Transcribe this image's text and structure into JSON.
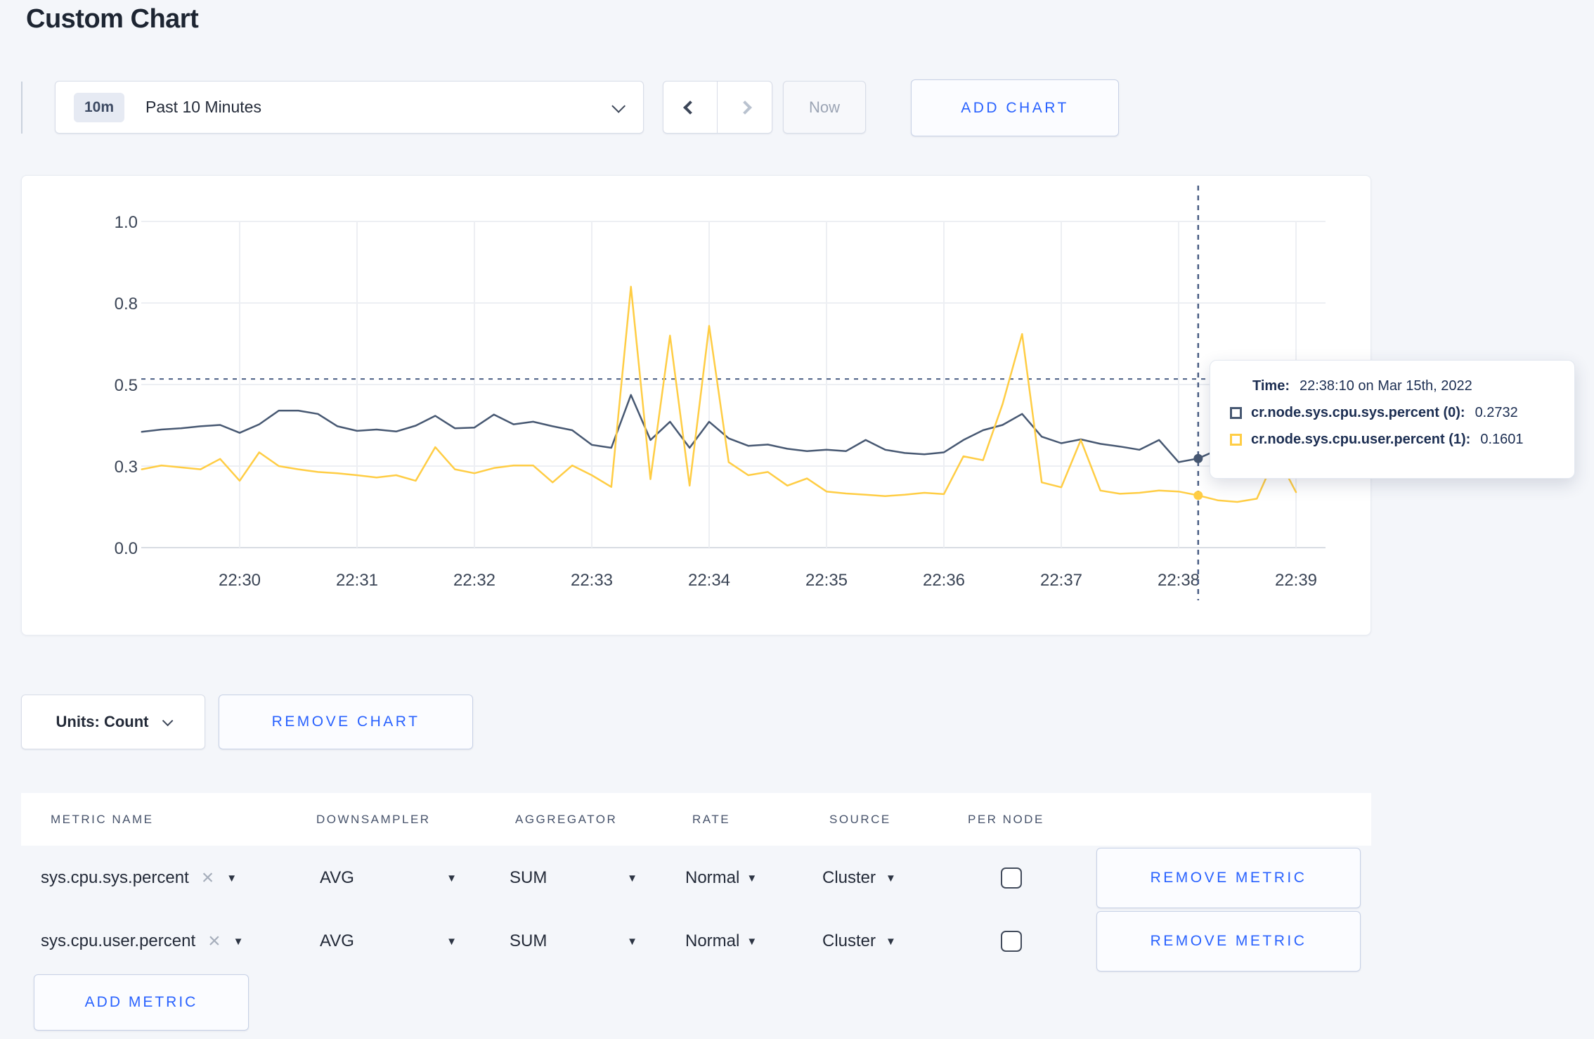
{
  "page": {
    "title": "Custom Chart"
  },
  "toolbar": {
    "range_badge": "10m",
    "range_label": "Past 10 Minutes",
    "now_label": "Now",
    "add_chart_label": "ADD CHART"
  },
  "icons": {
    "caret_down": "▼",
    "close": "×"
  },
  "chart_controls": {
    "units_label": "Units: Count",
    "remove_chart_label": "REMOVE CHART",
    "add_metric_label": "ADD METRIC"
  },
  "chart_data": {
    "type": "line",
    "title": "",
    "grid": true,
    "ylim": [
      0,
      1
    ],
    "y_ticks": [
      {
        "value": 1.0,
        "label": "1.0"
      },
      {
        "value": 0.75,
        "label": "0.8"
      },
      {
        "value": 0.5,
        "label": "0.5"
      },
      {
        "value": 0.25,
        "label": "0.3"
      },
      {
        "value": 0.0,
        "label": "0.0"
      }
    ],
    "x_ticks": [
      "22:30",
      "22:31",
      "22:32",
      "22:33",
      "22:34",
      "22:35",
      "22:36",
      "22:37",
      "22:38",
      "22:39"
    ],
    "x_seconds_base": "22:29:00",
    "x_seconds": [
      10,
      20,
      30,
      40,
      50,
      60,
      70,
      80,
      90,
      100,
      110,
      120,
      130,
      140,
      150,
      160,
      170,
      180,
      190,
      200,
      210,
      220,
      230,
      240,
      250,
      260,
      270,
      280,
      290,
      300,
      310,
      320,
      330,
      340,
      350,
      360,
      370,
      380,
      390,
      400,
      410,
      420,
      430,
      440,
      450,
      460,
      470,
      480,
      490,
      500,
      510,
      520,
      530,
      540,
      550,
      560,
      570,
      580,
      590,
      600
    ],
    "series": [
      {
        "name": "cr.node.sys.cpu.sys.percent",
        "color": "#475872",
        "values": [
          0.355,
          0.362,
          0.366,
          0.372,
          0.376,
          0.352,
          0.378,
          0.42,
          0.42,
          0.41,
          0.372,
          0.358,
          0.362,
          0.356,
          0.374,
          0.404,
          0.366,
          0.368,
          0.408,
          0.378,
          0.386,
          0.372,
          0.36,
          0.315,
          0.306,
          0.468,
          0.33,
          0.386,
          0.306,
          0.386,
          0.335,
          0.312,
          0.316,
          0.303,
          0.296,
          0.3,
          0.296,
          0.33,
          0.3,
          0.29,
          0.286,
          0.292,
          0.33,
          0.36,
          0.376,
          0.41,
          0.34,
          0.32,
          0.332,
          0.318,
          0.31,
          0.3,
          0.33,
          0.262,
          0.2732,
          0.3,
          0.31,
          0.295,
          0.3,
          0.302
        ]
      },
      {
        "name": "cr.node.sys.cpu.user.percent",
        "color": "#FFCD44",
        "values": [
          0.24,
          0.252,
          0.246,
          0.24,
          0.272,
          0.205,
          0.292,
          0.25,
          0.24,
          0.232,
          0.228,
          0.222,
          0.215,
          0.222,
          0.205,
          0.308,
          0.24,
          0.228,
          0.244,
          0.252,
          0.252,
          0.2,
          0.252,
          0.222,
          0.186,
          0.8,
          0.21,
          0.65,
          0.19,
          0.68,
          0.262,
          0.222,
          0.232,
          0.19,
          0.212,
          0.172,
          0.166,
          0.162,
          0.158,
          0.162,
          0.168,
          0.164,
          0.28,
          0.268,
          0.44,
          0.655,
          0.2,
          0.185,
          0.33,
          0.175,
          0.165,
          0.168,
          0.175,
          0.172,
          0.1601,
          0.145,
          0.14,
          0.15,
          0.285,
          0.17
        ]
      }
    ],
    "crosshair": {
      "x_seconds": 550,
      "y_value": 0.517,
      "color": "#4a5e84"
    },
    "tooltip": {
      "time_prefix": "Time:",
      "time_value": "22:38:10 on Mar 15th, 2022",
      "rows": [
        {
          "name": "cr.node.sys.cpu.sys.percent (0):",
          "value": "0.2732",
          "value_num": 0.2732
        },
        {
          "name": "cr.node.sys.cpu.user.percent (1):",
          "value": "0.1601",
          "value_num": 0.1601
        }
      ]
    }
  },
  "metrics_table": {
    "headers": [
      "METRIC NAME",
      "DOWNSAMPLER",
      "AGGREGATOR",
      "RATE",
      "SOURCE",
      "PER NODE"
    ],
    "remove_metric_label": "REMOVE METRIC",
    "rows": [
      {
        "metric": "sys.cpu.sys.percent",
        "downsampler": "AVG",
        "aggregator": "SUM",
        "rate": "Normal",
        "source": "Cluster",
        "per_node_checked": false
      },
      {
        "metric": "sys.cpu.user.percent",
        "downsampler": "AVG",
        "aggregator": "SUM",
        "rate": "Normal",
        "source": "Cluster",
        "per_node_checked": false
      }
    ]
  }
}
